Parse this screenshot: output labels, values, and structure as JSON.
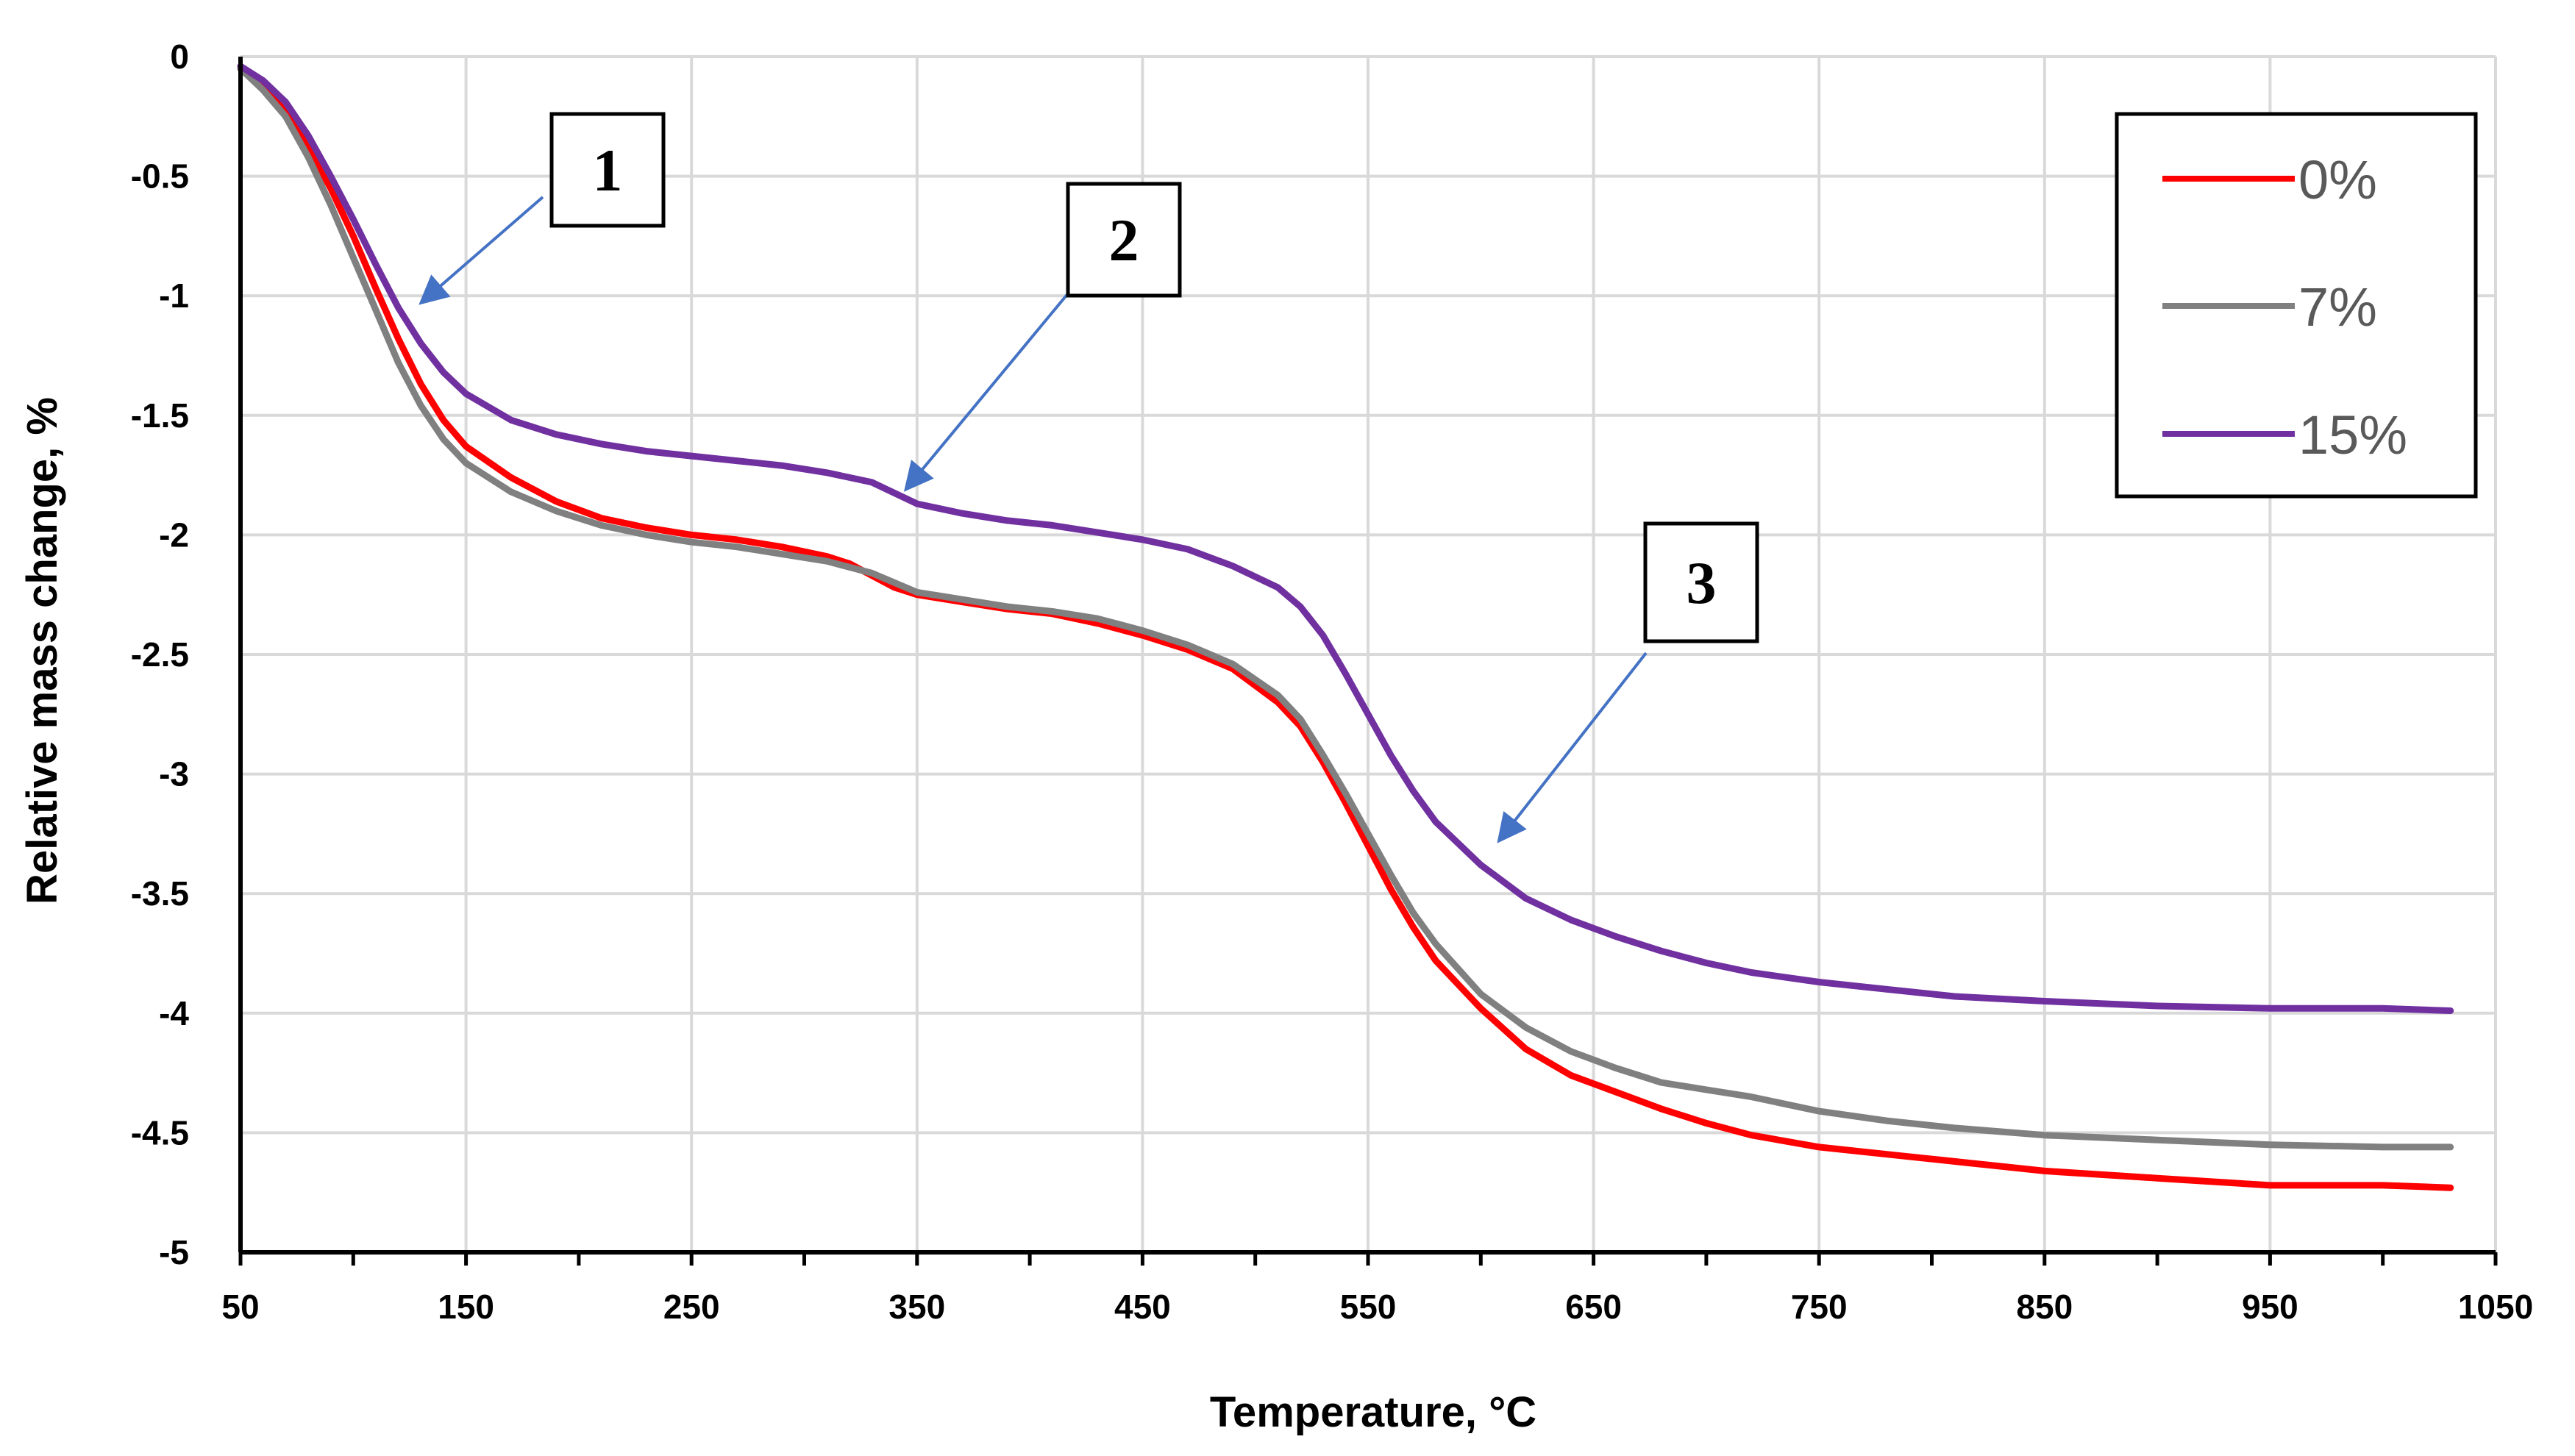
{
  "chart_data": {
    "type": "line",
    "title": "",
    "xlabel": "Temperature, °C",
    "ylabel": "Relative mass change, %",
    "xlim": [
      50,
      1050
    ],
    "ylim": [
      -5,
      0
    ],
    "xticks": [
      50,
      150,
      250,
      350,
      450,
      550,
      650,
      750,
      850,
      950,
      1050
    ],
    "yticks": [
      0,
      -0.5,
      -1,
      -1.5,
      -2,
      -2.5,
      -3,
      -3.5,
      -4,
      -4.5,
      -5
    ],
    "xtick_labels": [
      "50",
      "150",
      "250",
      "350",
      "450",
      "550",
      "650",
      "750",
      "850",
      "950",
      "1050"
    ],
    "ytick_labels": [
      "0",
      "-0.5",
      "-1",
      "-1.5",
      "-2",
      "-2.5",
      "-3",
      "-3.5",
      "-4",
      "-4.5",
      "-5"
    ],
    "grid": true,
    "legend_position": "top-right",
    "series": [
      {
        "name": "0%",
        "color": "#ff0000",
        "points": [
          [
            50,
            -0.05
          ],
          [
            60,
            -0.12
          ],
          [
            70,
            -0.22
          ],
          [
            80,
            -0.38
          ],
          [
            90,
            -0.55
          ],
          [
            100,
            -0.75
          ],
          [
            110,
            -0.97
          ],
          [
            120,
            -1.18
          ],
          [
            130,
            -1.37
          ],
          [
            140,
            -1.52
          ],
          [
            150,
            -1.63
          ],
          [
            170,
            -1.76
          ],
          [
            190,
            -1.86
          ],
          [
            210,
            -1.93
          ],
          [
            230,
            -1.97
          ],
          [
            250,
            -2.0
          ],
          [
            270,
            -2.02
          ],
          [
            290,
            -2.05
          ],
          [
            310,
            -2.09
          ],
          [
            320,
            -2.12
          ],
          [
            330,
            -2.17
          ],
          [
            340,
            -2.22
          ],
          [
            350,
            -2.25
          ],
          [
            370,
            -2.28
          ],
          [
            390,
            -2.31
          ],
          [
            410,
            -2.33
          ],
          [
            430,
            -2.37
          ],
          [
            450,
            -2.42
          ],
          [
            470,
            -2.48
          ],
          [
            490,
            -2.56
          ],
          [
            510,
            -2.7
          ],
          [
            520,
            -2.8
          ],
          [
            530,
            -2.95
          ],
          [
            540,
            -3.12
          ],
          [
            550,
            -3.3
          ],
          [
            560,
            -3.48
          ],
          [
            570,
            -3.64
          ],
          [
            580,
            -3.78
          ],
          [
            600,
            -3.98
          ],
          [
            620,
            -4.15
          ],
          [
            640,
            -4.26
          ],
          [
            660,
            -4.33
          ],
          [
            680,
            -4.4
          ],
          [
            700,
            -4.46
          ],
          [
            720,
            -4.51
          ],
          [
            750,
            -4.56
          ],
          [
            780,
            -4.59
          ],
          [
            810,
            -4.62
          ],
          [
            850,
            -4.66
          ],
          [
            900,
            -4.69
          ],
          [
            950,
            -4.72
          ],
          [
            1000,
            -4.72
          ],
          [
            1030,
            -4.73
          ]
        ]
      },
      {
        "name": "7%",
        "color": "#808080",
        "points": [
          [
            50,
            -0.05
          ],
          [
            60,
            -0.14
          ],
          [
            70,
            -0.25
          ],
          [
            80,
            -0.42
          ],
          [
            90,
            -0.62
          ],
          [
            100,
            -0.84
          ],
          [
            110,
            -1.06
          ],
          [
            120,
            -1.28
          ],
          [
            130,
            -1.46
          ],
          [
            140,
            -1.6
          ],
          [
            150,
            -1.7
          ],
          [
            170,
            -1.82
          ],
          [
            190,
            -1.9
          ],
          [
            210,
            -1.96
          ],
          [
            230,
            -2.0
          ],
          [
            250,
            -2.03
          ],
          [
            270,
            -2.05
          ],
          [
            290,
            -2.08
          ],
          [
            310,
            -2.11
          ],
          [
            330,
            -2.16
          ],
          [
            350,
            -2.24
          ],
          [
            370,
            -2.27
          ],
          [
            390,
            -2.3
          ],
          [
            410,
            -2.32
          ],
          [
            430,
            -2.35
          ],
          [
            450,
            -2.4
          ],
          [
            470,
            -2.46
          ],
          [
            490,
            -2.54
          ],
          [
            510,
            -2.67
          ],
          [
            520,
            -2.77
          ],
          [
            530,
            -2.92
          ],
          [
            540,
            -3.08
          ],
          [
            550,
            -3.25
          ],
          [
            560,
            -3.42
          ],
          [
            570,
            -3.58
          ],
          [
            580,
            -3.71
          ],
          [
            600,
            -3.92
          ],
          [
            620,
            -4.06
          ],
          [
            640,
            -4.16
          ],
          [
            660,
            -4.23
          ],
          [
            680,
            -4.29
          ],
          [
            700,
            -4.32
          ],
          [
            720,
            -4.35
          ],
          [
            750,
            -4.41
          ],
          [
            780,
            -4.45
          ],
          [
            810,
            -4.48
          ],
          [
            850,
            -4.51
          ],
          [
            900,
            -4.53
          ],
          [
            950,
            -4.55
          ],
          [
            1000,
            -4.56
          ],
          [
            1030,
            -4.56
          ]
        ]
      },
      {
        "name": "15%",
        "color": "#7030a0",
        "points": [
          [
            50,
            -0.04
          ],
          [
            60,
            -0.1
          ],
          [
            70,
            -0.19
          ],
          [
            80,
            -0.33
          ],
          [
            90,
            -0.5
          ],
          [
            100,
            -0.68
          ],
          [
            110,
            -0.87
          ],
          [
            120,
            -1.05
          ],
          [
            130,
            -1.2
          ],
          [
            140,
            -1.32
          ],
          [
            150,
            -1.41
          ],
          [
            170,
            -1.52
          ],
          [
            190,
            -1.58
          ],
          [
            210,
            -1.62
          ],
          [
            230,
            -1.65
          ],
          [
            250,
            -1.67
          ],
          [
            270,
            -1.69
          ],
          [
            290,
            -1.71
          ],
          [
            310,
            -1.74
          ],
          [
            330,
            -1.78
          ],
          [
            350,
            -1.87
          ],
          [
            370,
            -1.91
          ],
          [
            390,
            -1.94
          ],
          [
            410,
            -1.96
          ],
          [
            430,
            -1.99
          ],
          [
            450,
            -2.02
          ],
          [
            470,
            -2.06
          ],
          [
            490,
            -2.13
          ],
          [
            510,
            -2.22
          ],
          [
            520,
            -2.3
          ],
          [
            530,
            -2.42
          ],
          [
            540,
            -2.58
          ],
          [
            550,
            -2.75
          ],
          [
            560,
            -2.92
          ],
          [
            570,
            -3.07
          ],
          [
            580,
            -3.2
          ],
          [
            600,
            -3.38
          ],
          [
            620,
            -3.52
          ],
          [
            640,
            -3.61
          ],
          [
            660,
            -3.68
          ],
          [
            680,
            -3.74
          ],
          [
            700,
            -3.79
          ],
          [
            720,
            -3.83
          ],
          [
            750,
            -3.87
          ],
          [
            780,
            -3.9
          ],
          [
            810,
            -3.93
          ],
          [
            850,
            -3.95
          ],
          [
            900,
            -3.97
          ],
          [
            950,
            -3.98
          ],
          [
            1000,
            -3.98
          ],
          [
            1030,
            -3.99
          ]
        ]
      }
    ],
    "annotations": [
      {
        "label": "1",
        "target": [
          130,
          -1.03
        ]
      },
      {
        "label": "2",
        "target": [
          345,
          -1.81
        ]
      },
      {
        "label": "3",
        "target": [
          608,
          -3.28
        ]
      }
    ]
  }
}
